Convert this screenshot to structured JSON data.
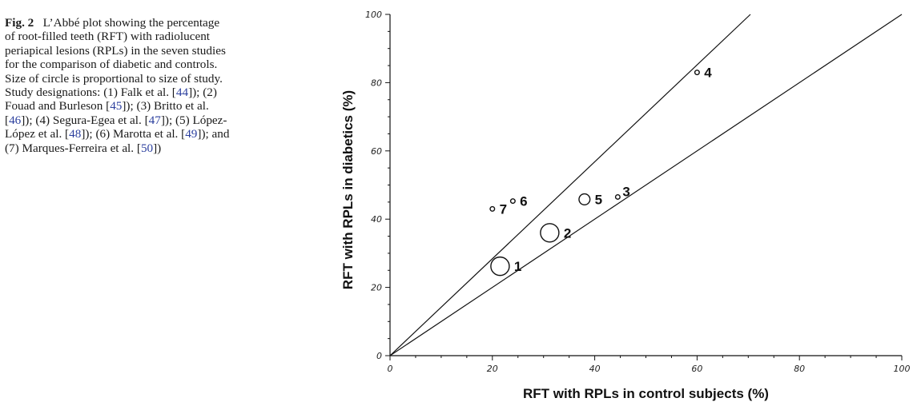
{
  "caption": {
    "fig_label": "Fig. 2",
    "segments": [
      {
        "text": "L’Abbé plot showing the percentage of root-filled teeth (RFT) with radiolucent periapical lesions (RPLs) in the seven studies for the comparison of diabetic and controls. Size of circle is proportional to size of study. Study designations: (1) Falk et al. [",
        "ref": false
      },
      {
        "text": "44",
        "ref": true
      },
      {
        "text": "]); (2) Fouad and Burleson [",
        "ref": false
      },
      {
        "text": "45",
        "ref": true
      },
      {
        "text": "]); (3) Britto et al. [",
        "ref": false
      },
      {
        "text": "46",
        "ref": true
      },
      {
        "text": "]); (4) Segura-Egea et al. [",
        "ref": false
      },
      {
        "text": "47",
        "ref": true
      },
      {
        "text": "]); (5) López-López et al. [",
        "ref": false
      },
      {
        "text": "48",
        "ref": true
      },
      {
        "text": "]); (6) Marotta et al. [",
        "ref": false
      },
      {
        "text": "49",
        "ref": true
      },
      {
        "text": "]); and (7) Marques-Ferreira et al. [",
        "ref": false
      },
      {
        "text": "50",
        "ref": true
      },
      {
        "text": "])",
        "ref": false
      }
    ]
  },
  "chart_data": {
    "type": "scatter",
    "title": "",
    "xlabel": "RFT with RPLs in control subjects (%)",
    "ylabel": "RFT with RPLs in diabetics (%)",
    "xlim": [
      0,
      100
    ],
    "ylim": [
      0,
      100
    ],
    "x_ticks": [
      0,
      20,
      40,
      60,
      80,
      100
    ],
    "y_ticks": [
      0,
      20,
      40,
      60,
      80,
      100
    ],
    "grid": false,
    "reference_lines": [
      {
        "slope": 1
      },
      {
        "slope": 1.42
      }
    ],
    "points": [
      {
        "label": "1",
        "x": 21.5,
        "y": 26.2,
        "relative_size": 1.0
      },
      {
        "label": "2",
        "x": 31.2,
        "y": 36.0,
        "relative_size": 1.0
      },
      {
        "label": "3",
        "x": 44.5,
        "y": 46.5,
        "relative_size": 0.25
      },
      {
        "label": "4",
        "x": 60.0,
        "y": 83.0,
        "relative_size": 0.25
      },
      {
        "label": "5",
        "x": 38.0,
        "y": 45.8,
        "relative_size": 0.6
      },
      {
        "label": "6",
        "x": 24.0,
        "y": 45.3,
        "relative_size": 0.25
      },
      {
        "label": "7",
        "x": 20.0,
        "y": 43.0,
        "relative_size": 0.25
      }
    ],
    "colors": {
      "marks": "#111111",
      "ref_links": "#2b3f9e"
    }
  }
}
